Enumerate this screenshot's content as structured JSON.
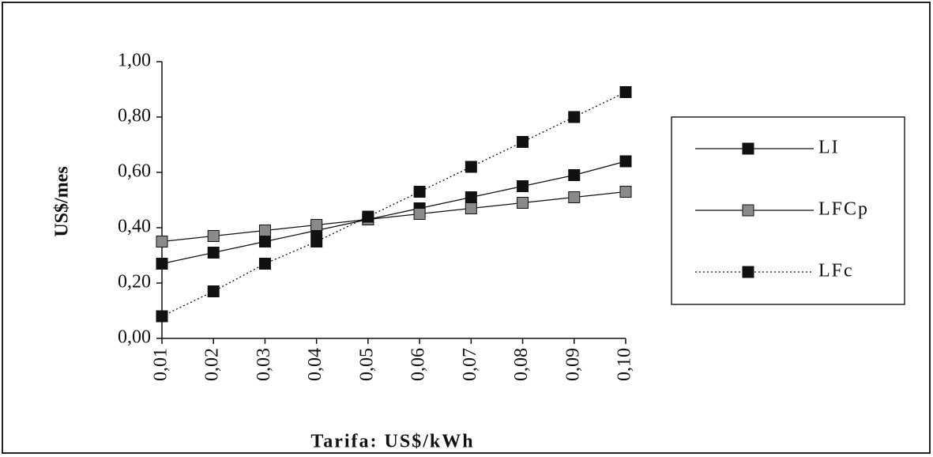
{
  "chart_data": {
    "type": "line",
    "x_label": "Tarifa: US$/kWh",
    "y_label": "US$/mes",
    "categories": [
      "0,01",
      "0,02",
      "0,03",
      "0,04",
      "0,05",
      "0,06",
      "0,07",
      "0,08",
      "0,09",
      "0,10"
    ],
    "series": [
      {
        "name": "LI",
        "color": "#111111",
        "line": "solid",
        "values": [
          0.27,
          0.31,
          0.35,
          0.39,
          0.43,
          0.47,
          0.51,
          0.55,
          0.59,
          0.64
        ]
      },
      {
        "name": "LFCp",
        "color": "#8a8a8a",
        "line": "solid",
        "values": [
          0.35,
          0.37,
          0.39,
          0.41,
          0.43,
          0.45,
          0.47,
          0.49,
          0.51,
          0.53
        ]
      },
      {
        "name": "LFc",
        "color": "#111111",
        "line": "dotted",
        "values": [
          0.08,
          0.17,
          0.27,
          0.35,
          0.44,
          0.53,
          0.62,
          0.71,
          0.8,
          0.89
        ]
      }
    ],
    "ylim": [
      0,
      1
    ],
    "yticks": [
      {
        "value": 0,
        "label": "0,00"
      },
      {
        "value": 0.2,
        "label": "0,20"
      },
      {
        "value": 0.4,
        "label": "0,40"
      },
      {
        "value": 0.6,
        "label": "0,60"
      },
      {
        "value": 0.8,
        "label": "0,80"
      },
      {
        "value": 1,
        "label": "1,00"
      }
    ],
    "legend": "right"
  }
}
